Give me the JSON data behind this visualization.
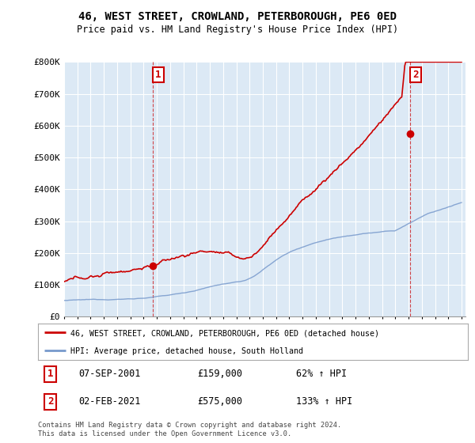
{
  "title": "46, WEST STREET, CROWLAND, PETERBOROUGH, PE6 0ED",
  "subtitle": "Price paid vs. HM Land Registry's House Price Index (HPI)",
  "property_label": "46, WEST STREET, CROWLAND, PETERBOROUGH, PE6 0ED (detached house)",
  "hpi_label": "HPI: Average price, detached house, South Holland",
  "sale1_date": "07-SEP-2001",
  "sale1_price": 159000,
  "sale1_pct": "62%",
  "sale2_date": "02-FEB-2021",
  "sale2_price": 575000,
  "sale2_pct": "133%",
  "footer": "Contains HM Land Registry data © Crown copyright and database right 2024.\nThis data is licensed under the Open Government Licence v3.0.",
  "property_color": "#cc0000",
  "hpi_color": "#7799cc",
  "chart_bg_color": "#dce9f5",
  "background_color": "#ffffff",
  "grid_color": "#ffffff",
  "ylim": [
    0,
    800000
  ],
  "yticks": [
    0,
    100000,
    200000,
    300000,
    400000,
    500000,
    600000,
    700000,
    800000
  ],
  "ytick_labels": [
    "£0",
    "£100K",
    "£200K",
    "£300K",
    "£400K",
    "£500K",
    "£600K",
    "£700K",
    "£800K"
  ],
  "year_start": 1995,
  "year_end": 2025,
  "sale1_year": 2001.68,
  "sale2_year": 2021.09
}
